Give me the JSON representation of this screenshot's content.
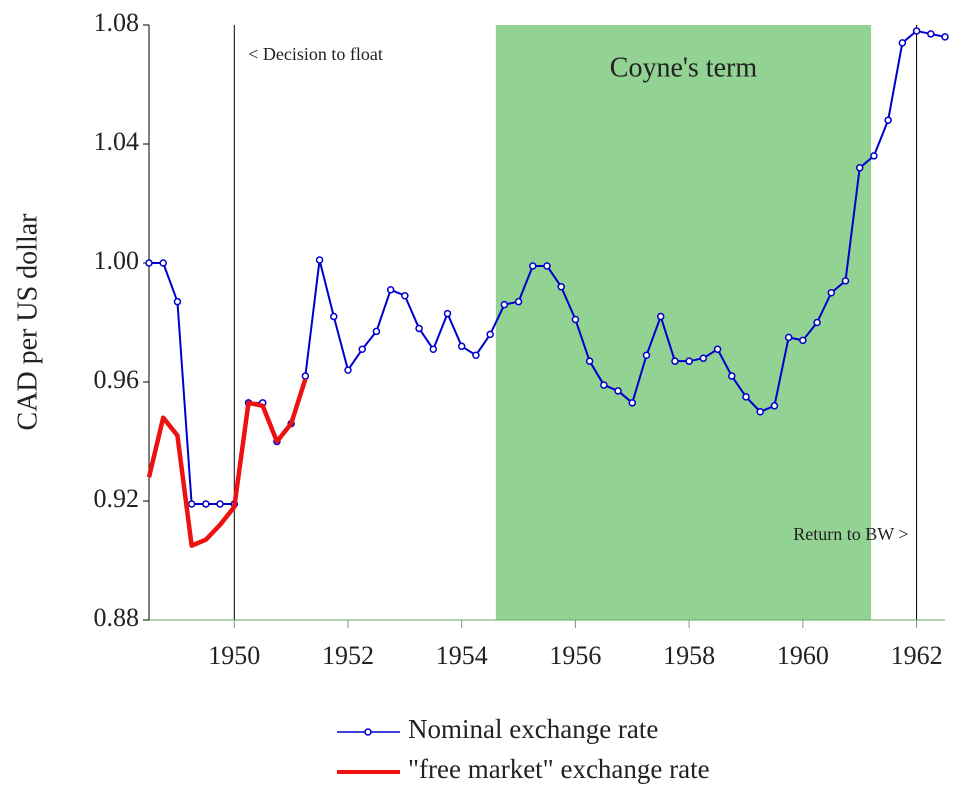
{
  "chart_data": {
    "type": "line",
    "y_label": "CAD per US dollar",
    "xlim": [
      1948.5,
      1962.5
    ],
    "ylim": [
      0.88,
      1.08
    ],
    "xticks": [
      1950,
      1952,
      1954,
      1956,
      1958,
      1960,
      1962
    ],
    "yticks": [
      0.88,
      0.92,
      0.96,
      {
        "value": 1.0,
        "label": "1.00"
      },
      1.04,
      1.08
    ],
    "shaded": {
      "start": 1954.6,
      "end": 1961.2,
      "label": "Coyne's term",
      "color": "#92d293"
    },
    "vlines": [
      {
        "x": 1950,
        "label": "< Decision to float"
      },
      {
        "x": 1962,
        "label": "Return to BW >"
      }
    ],
    "series": [
      {
        "name": "Nominal exchange rate",
        "color": "#0000cc",
        "markers": true,
        "x": [
          1948.5,
          1948.75,
          1949,
          1949.25,
          1949.5,
          1949.75,
          1950,
          1950.25,
          1950.5,
          1950.75,
          1951,
          1951.25,
          1951.5,
          1951.75,
          1952,
          1952.25,
          1952.5,
          1952.75,
          1953,
          1953.25,
          1953.5,
          1953.75,
          1954,
          1954.25,
          1954.5,
          1954.75,
          1955,
          1955.25,
          1955.5,
          1955.75,
          1956,
          1956.25,
          1956.5,
          1956.75,
          1957,
          1957.25,
          1957.5,
          1957.75,
          1958,
          1958.25,
          1958.5,
          1958.75,
          1959,
          1959.25,
          1959.5,
          1959.75,
          1960,
          1960.25,
          1960.5,
          1960.75,
          1961,
          1961.25,
          1961.5,
          1961.75,
          1962,
          1962.25,
          1962.5
        ],
        "values": [
          1.0,
          1.0,
          0.987,
          0.919,
          0.919,
          0.919,
          0.919,
          0.953,
          0.953,
          0.94,
          0.946,
          0.962,
          1.001,
          0.982,
          0.964,
          0.971,
          0.977,
          0.991,
          0.989,
          0.978,
          0.971,
          0.983,
          0.972,
          0.969,
          0.976,
          0.986,
          0.987,
          0.999,
          0.999,
          0.992,
          0.981,
          0.967,
          0.959,
          0.957,
          0.953,
          0.969,
          0.982,
          0.967,
          0.967,
          0.968,
          0.971,
          0.962,
          0.955,
          0.95,
          0.952,
          0.975,
          0.974,
          0.98,
          0.99,
          0.994,
          1.032,
          1.036,
          1.048,
          1.074,
          1.078,
          1.077,
          1.076
        ]
      },
      {
        "name": "\"free market\" exchange rate",
        "color": "#ee1111",
        "markers": false,
        "x": [
          1948.5,
          1948.75,
          1949,
          1949.25,
          1949.5,
          1949.75,
          1950,
          1950.25,
          1950.5,
          1950.75,
          1951,
          1951.25
        ],
        "values": [
          0.928,
          0.948,
          0.942,
          0.905,
          0.907,
          0.912,
          0.918,
          0.953,
          0.952,
          0.94,
          0.946,
          0.961
        ]
      }
    ]
  }
}
